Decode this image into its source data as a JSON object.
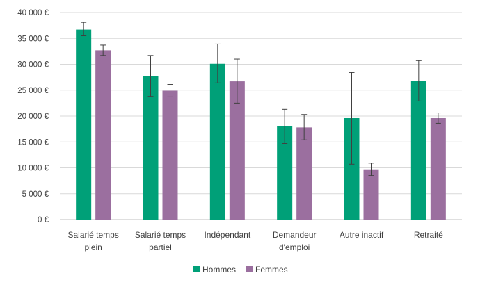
{
  "chart_data": {
    "type": "bar",
    "title": "",
    "xlabel": "",
    "ylabel": "",
    "categories": [
      [
        "Salarié temps",
        "plein"
      ],
      [
        "Salarié temps",
        "partiel"
      ],
      [
        "Indépendant"
      ],
      [
        "Demandeur",
        "d'emploi"
      ],
      [
        "Autre inactif"
      ],
      [
        "Retraité"
      ]
    ],
    "ylim": [
      0,
      40000
    ],
    "yticks": [
      0,
      5000,
      10000,
      15000,
      20000,
      25000,
      30000,
      35000,
      40000
    ],
    "ytick_labels": [
      "0 €",
      "5 000 €",
      "10 000 €",
      "15 000 €",
      "20 000 €",
      "25 000 €",
      "30 000 €",
      "35 000 €",
      "40 000 €"
    ],
    "grid": true,
    "legend_position": "bottom",
    "series": [
      {
        "name": "Hommes",
        "color": "#00A078",
        "values": [
          36700,
          27700,
          30100,
          18000,
          19600,
          26800
        ],
        "error_low": [
          35500,
          23800,
          26400,
          14700,
          10700,
          22900
        ],
        "error_high": [
          38100,
          31700,
          33900,
          21300,
          28400,
          30700
        ]
      },
      {
        "name": "Femmes",
        "color": "#9B6F9F",
        "values": [
          32700,
          24900,
          26700,
          17800,
          9700,
          19600
        ],
        "error_low": [
          31700,
          23700,
          22500,
          15400,
          8500,
          18600
        ],
        "error_high": [
          33700,
          26100,
          31000,
          20300,
          10900,
          20600
        ]
      }
    ]
  }
}
